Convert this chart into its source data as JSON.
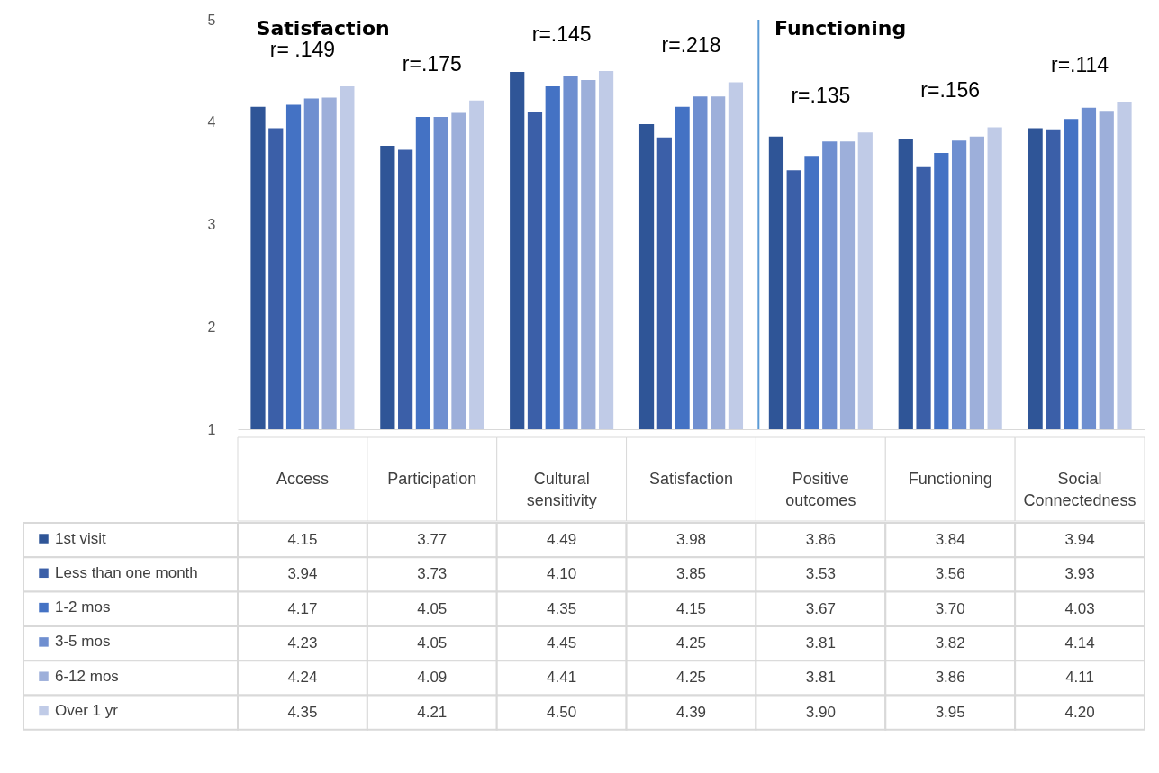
{
  "chart_data": {
    "type": "bar",
    "categories": [
      "Access",
      "Participation",
      "Cultural sensitivity",
      "Satisfaction",
      "Positive outcomes",
      "Functioning",
      "Social Connectedness"
    ],
    "series": [
      {
        "name": "1st visit",
        "color": "#2f5597",
        "values": [
          4.15,
          3.77,
          4.49,
          3.98,
          3.86,
          3.84,
          3.94
        ]
      },
      {
        "name": "Less than one month",
        "color": "#3b5fa8",
        "values": [
          3.94,
          3.73,
          4.1,
          3.85,
          3.53,
          3.56,
          3.93
        ]
      },
      {
        "name": "1-2 mos",
        "color": "#4472c4",
        "values": [
          4.17,
          4.05,
          4.35,
          4.15,
          3.67,
          3.7,
          4.03
        ]
      },
      {
        "name": "3-5 mos",
        "color": "#6f8fd0",
        "values": [
          4.23,
          4.05,
          4.45,
          4.25,
          3.81,
          3.82,
          4.14
        ]
      },
      {
        "name": "6-12 mos",
        "color": "#9dafda",
        "values": [
          4.24,
          4.09,
          4.41,
          4.25,
          3.81,
          3.86,
          4.11
        ]
      },
      {
        "name": "Over 1 yr",
        "color": "#c0cbe7",
        "values": [
          4.35,
          4.21,
          4.5,
          4.39,
          3.9,
          3.95,
          4.2
        ]
      }
    ],
    "ylim": [
      1,
      5
    ],
    "yticks": [
      1,
      2,
      3,
      4,
      5
    ],
    "grid": false,
    "legend": "bottom left",
    "value_labels": [
      [
        "4.15",
        "3.77",
        "4.49",
        "3.98",
        "3.86",
        "3.84",
        "3.94"
      ],
      [
        "3.94",
        "3.73",
        "4.10",
        "3.85",
        "3.53",
        "3.56",
        "3.93"
      ],
      [
        "4.17",
        "4.05",
        "4.35",
        "4.15",
        "3.67",
        "3.70",
        "4.03"
      ],
      [
        "4.23",
        "4.05",
        "4.45",
        "4.25",
        "3.81",
        "3.82",
        "4.14"
      ],
      [
        "4.24",
        "4.09",
        "4.41",
        "4.25",
        "3.81",
        "3.86",
        "4.11"
      ],
      [
        "4.35",
        "4.21",
        "4.50",
        "4.39",
        "3.90",
        "3.95",
        "4.20"
      ]
    ],
    "ref_lines": [
      {
        "axis": "x",
        "value": "Positive outcomes",
        "color": "#5b9bd5"
      }
    ],
    "annotations": [
      "Satisfaction",
      "Functioning",
      "r= .149",
      "r=.175",
      "r=.145",
      "r=.218",
      "r=.135",
      "r=.156",
      "r=.114"
    ]
  }
}
